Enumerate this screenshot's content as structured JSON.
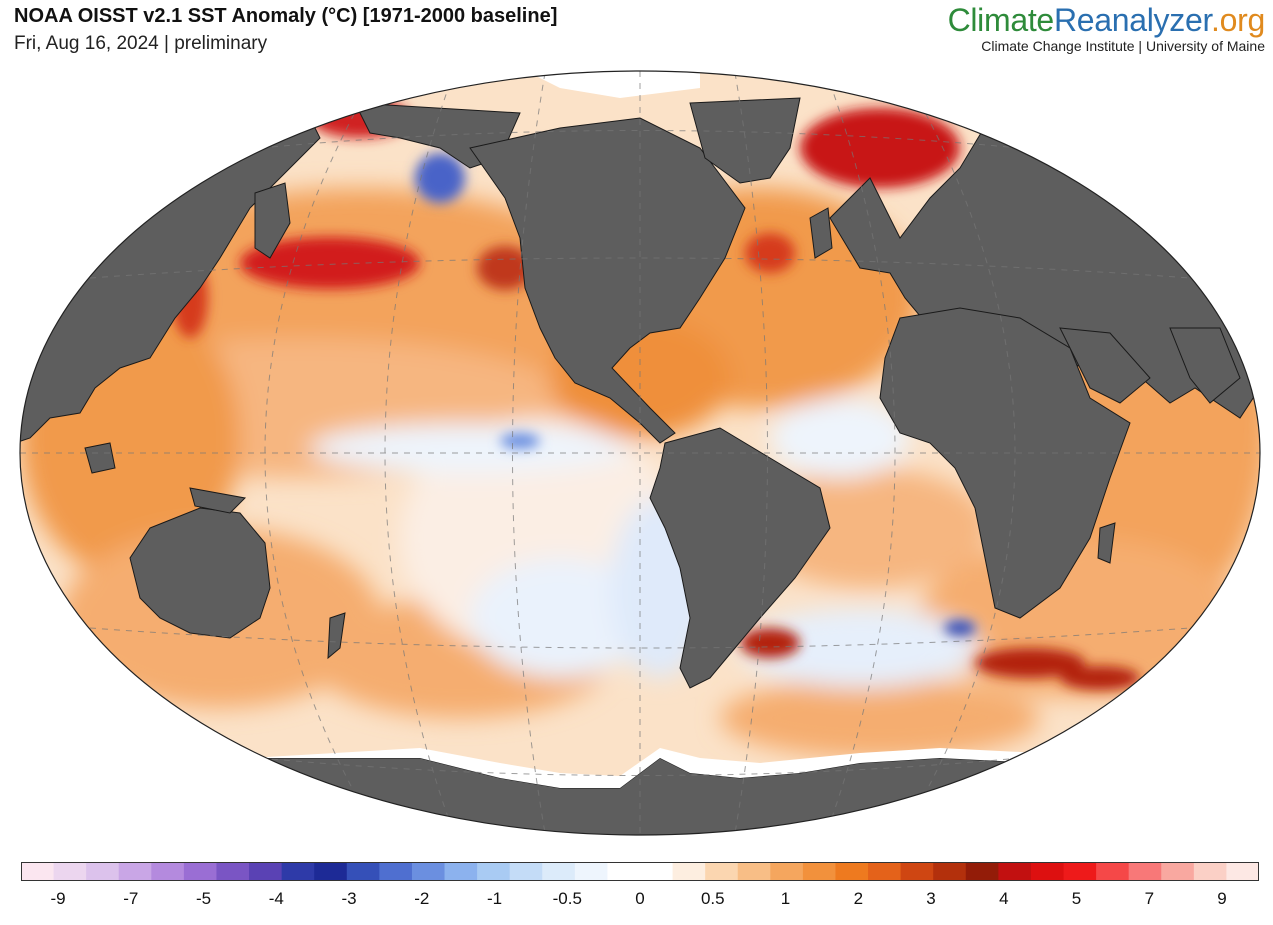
{
  "header": {
    "title": "NOAA OISST v2.1 SST Anomaly (°C) [1971-2000 baseline]",
    "subtitle": "Fri, Aug 16, 2024 | preliminary"
  },
  "brand": {
    "part1": "Climate",
    "part2": "Reanalyzer",
    "part3": ".org",
    "tagline": "Climate Change Institute | University of Maine",
    "color1": "#2e8b3a",
    "color2": "#2a6fb0",
    "color3": "#e08a1e"
  },
  "map": {
    "projection": "Robinson",
    "graticule": "dashed",
    "land_color": "#5e5e5e",
    "ice_color": "#ffffff"
  },
  "colorbar": {
    "tick_labels": [
      "-9",
      "-7",
      "-5",
      "-4",
      "-3",
      "-2",
      "-1",
      "-0.5",
      "0",
      "0.5",
      "1",
      "2",
      "3",
      "4",
      "5",
      "7",
      "9"
    ],
    "colors": [
      "#fbe6f0",
      "#ecd6ef",
      "#dcc2ec",
      "#c9a6e6",
      "#b48ade",
      "#9a6ed4",
      "#7a55c4",
      "#5a42b4",
      "#2e3aa8",
      "#1d2a96",
      "#3550b8",
      "#4f6fd0",
      "#6b8fe0",
      "#8cb2ee",
      "#a9cbf3",
      "#c4dcf7",
      "#dcebfa",
      "#eef5fd",
      "#ffffff",
      "#ffffff",
      "#fdeee0",
      "#fbd6b0",
      "#f8be86",
      "#f5a65e",
      "#f2913c",
      "#ee7a1f",
      "#e4621a",
      "#cf4612",
      "#b3300c",
      "#931c08",
      "#c21010",
      "#dd1010",
      "#ee1a1a",
      "#f54848",
      "#f87878",
      "#f9a8a0",
      "#fbd0c6",
      "#fde8e4"
    ]
  }
}
